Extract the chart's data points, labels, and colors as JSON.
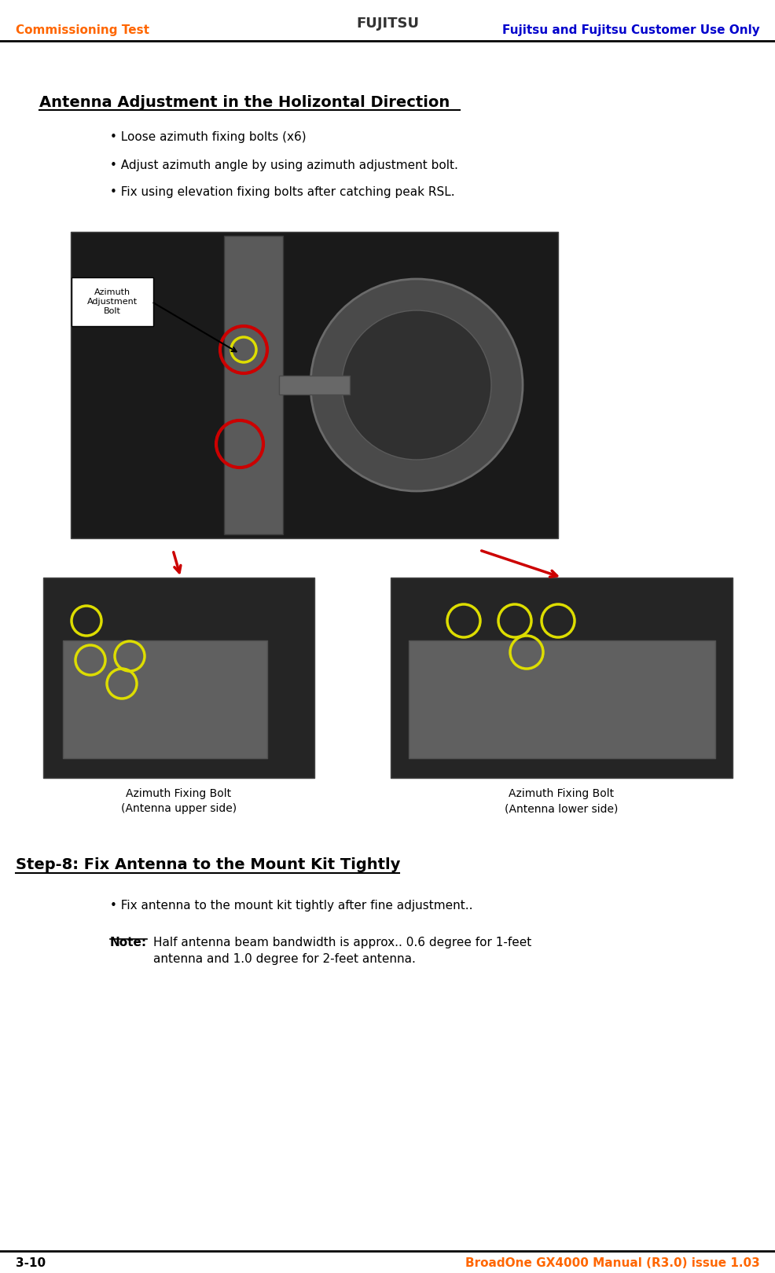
{
  "header_left": "Commissioning Test",
  "header_left_color": "#FF6600",
  "header_right": "Fujitsu and Fujitsu Customer Use Only",
  "header_right_color": "#0000CC",
  "footer_left": "3-10",
  "footer_right": "BroadOne GX4000 Manual (R3.0) issue 1.03",
  "footer_color": "#FF6600",
  "section_title": "Antenna Adjustment in the Holizontal Direction",
  "bullet_points": [
    "Loose azimuth fixing bolts (x6)",
    "Adjust azimuth angle by using azimuth adjustment bolt.",
    "Fix using elevation fixing bolts after catching peak RSL."
  ],
  "step_title": "Step-8: Fix Antenna to the Mount Kit Tightly",
  "step_bullets": [
    "Fix antenna to the mount kit tightly after fine adjustment.."
  ],
  "note_label": "Note:",
  "note_text": "Half antenna beam bandwidth is approx.. 0.6 degree for 1-feet\nantenna and 1.0 degree for 2-feet antenna.",
  "label_adjustment_bolt": "Azimuth\nAdjustment\nBolt",
  "label_upper": "Azimuth Fixing Bolt\n(Antenna upper side)",
  "label_lower": "Azimuth Fixing Bolt\n(Antenna lower side)",
  "bg_color": "#FFFFFF",
  "text_color": "#000000",
  "header_line_color": "#000000",
  "footer_line_color": "#000000"
}
